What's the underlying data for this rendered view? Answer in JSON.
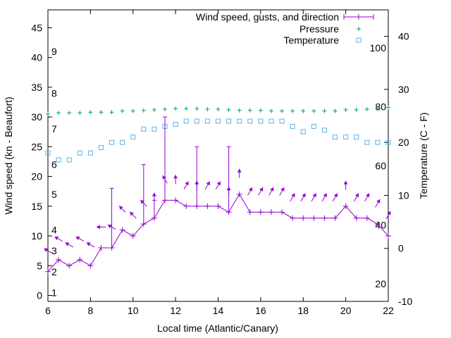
{
  "chart_data": {
    "type": "line",
    "xlabel": "Local time (Atlantic/Canary)",
    "ylabel": "Wind speed (kn - Beaufort)",
    "y2label": "Temperature (C - F)",
    "xlim": [
      6,
      22
    ],
    "ylim": [
      -1,
      48
    ],
    "y2lim": [
      -10,
      45
    ],
    "xticks": [
      "6",
      "8",
      "10",
      "12",
      "14",
      "16",
      "18",
      "20",
      "22"
    ],
    "yticks": [
      "0",
      "5",
      "10",
      "15",
      "20",
      "25",
      "30",
      "35",
      "40",
      "45"
    ],
    "y2ticks": [
      "-10",
      "0",
      "10",
      "20",
      "30",
      "40"
    ],
    "beaufort_labels": [
      "1",
      "2",
      "3",
      "4",
      "5",
      "6",
      "7",
      "8",
      "9"
    ],
    "beaufort_positions": [
      0.5,
      4.0,
      7.5,
      11.0,
      17.0,
      22.0,
      28.0,
      34.0,
      41.0
    ],
    "fahrenheit_labels": [
      "20",
      "40",
      "60",
      "80",
      "100"
    ],
    "fahrenheit_positions": [
      -6.7,
      4.4,
      15.6,
      26.7,
      37.8
    ],
    "legend_position": "top-right",
    "series": [
      {
        "name": "Wind speed, gusts, and direction",
        "color": "#9400d3",
        "x": [
          6,
          6.5,
          7,
          7.5,
          8,
          8.5,
          9,
          9.5,
          10,
          10.5,
          11,
          11.5,
          12,
          12.5,
          13,
          13.5,
          14,
          14.5,
          15,
          15.5,
          16,
          16.5,
          17,
          17.5,
          18,
          18.5,
          19,
          19.5,
          20,
          20.5,
          21,
          21.5,
          22
        ],
        "values": [
          4,
          6,
          5,
          6,
          5,
          8,
          8,
          11,
          10,
          12,
          13,
          16,
          16,
          15,
          15,
          15,
          15,
          14,
          17,
          14,
          14,
          14,
          14,
          13,
          13,
          13,
          13,
          13,
          15,
          13,
          13,
          12,
          10
        ],
        "gusts": [
          null,
          null,
          null,
          null,
          null,
          null,
          18,
          null,
          null,
          22,
          16,
          30,
          null,
          null,
          25,
          null,
          null,
          25,
          null,
          null,
          null,
          null,
          null,
          null,
          null,
          null,
          null,
          null,
          null,
          null,
          null,
          null,
          null
        ],
        "direction_deg": [
          300,
          300,
          300,
          300,
          300,
          270,
          300,
          315,
          315,
          315,
          0,
          330,
          0,
          30,
          0,
          30,
          30,
          0,
          0,
          30,
          30,
          30,
          30,
          30,
          30,
          30,
          30,
          30,
          0,
          30,
          30,
          30,
          30
        ]
      },
      {
        "name": "Pressure",
        "color": "#009e73",
        "x": [
          6,
          6.5,
          7,
          7.5,
          8,
          8.5,
          9,
          9.5,
          10,
          10.5,
          11,
          11.5,
          12,
          12.5,
          13,
          13.5,
          14,
          14.5,
          15,
          15.5,
          16,
          16.5,
          17,
          17.5,
          18,
          18.5,
          19,
          19.5,
          20,
          20.5,
          21,
          21.5,
          22
        ],
        "values": [
          30.5,
          30.7,
          30.7,
          30.7,
          30.8,
          30.8,
          30.8,
          31.0,
          31.0,
          31.1,
          31.2,
          31.3,
          31.4,
          31.4,
          31.4,
          31.3,
          31.3,
          31.2,
          31.1,
          31.1,
          31.1,
          31.0,
          31.0,
          31.0,
          31.0,
          31.0,
          31.0,
          31.0,
          31.2,
          31.2,
          31.3,
          31.4,
          31.6
        ]
      },
      {
        "name": "Temperature",
        "color": "#56b4e9",
        "x": [
          6,
          6.5,
          7,
          7.5,
          8,
          8.5,
          9,
          9.5,
          10,
          10.5,
          11,
          11.5,
          12,
          12.5,
          13,
          13.5,
          14,
          14.5,
          15,
          15.5,
          16,
          16.5,
          17,
          17.5,
          18,
          18.5,
          19,
          19.5,
          20,
          20.5,
          21,
          21.5,
          22
        ],
        "values": [
          18,
          16.7,
          16.7,
          18,
          18,
          19,
          20,
          20,
          21,
          22.5,
          22.5,
          23,
          23.4,
          24,
          24,
          24,
          24,
          24,
          24,
          24,
          24,
          24,
          24,
          23,
          22,
          23,
          22.3,
          21,
          21,
          21,
          20,
          20,
          20
        ]
      }
    ]
  }
}
